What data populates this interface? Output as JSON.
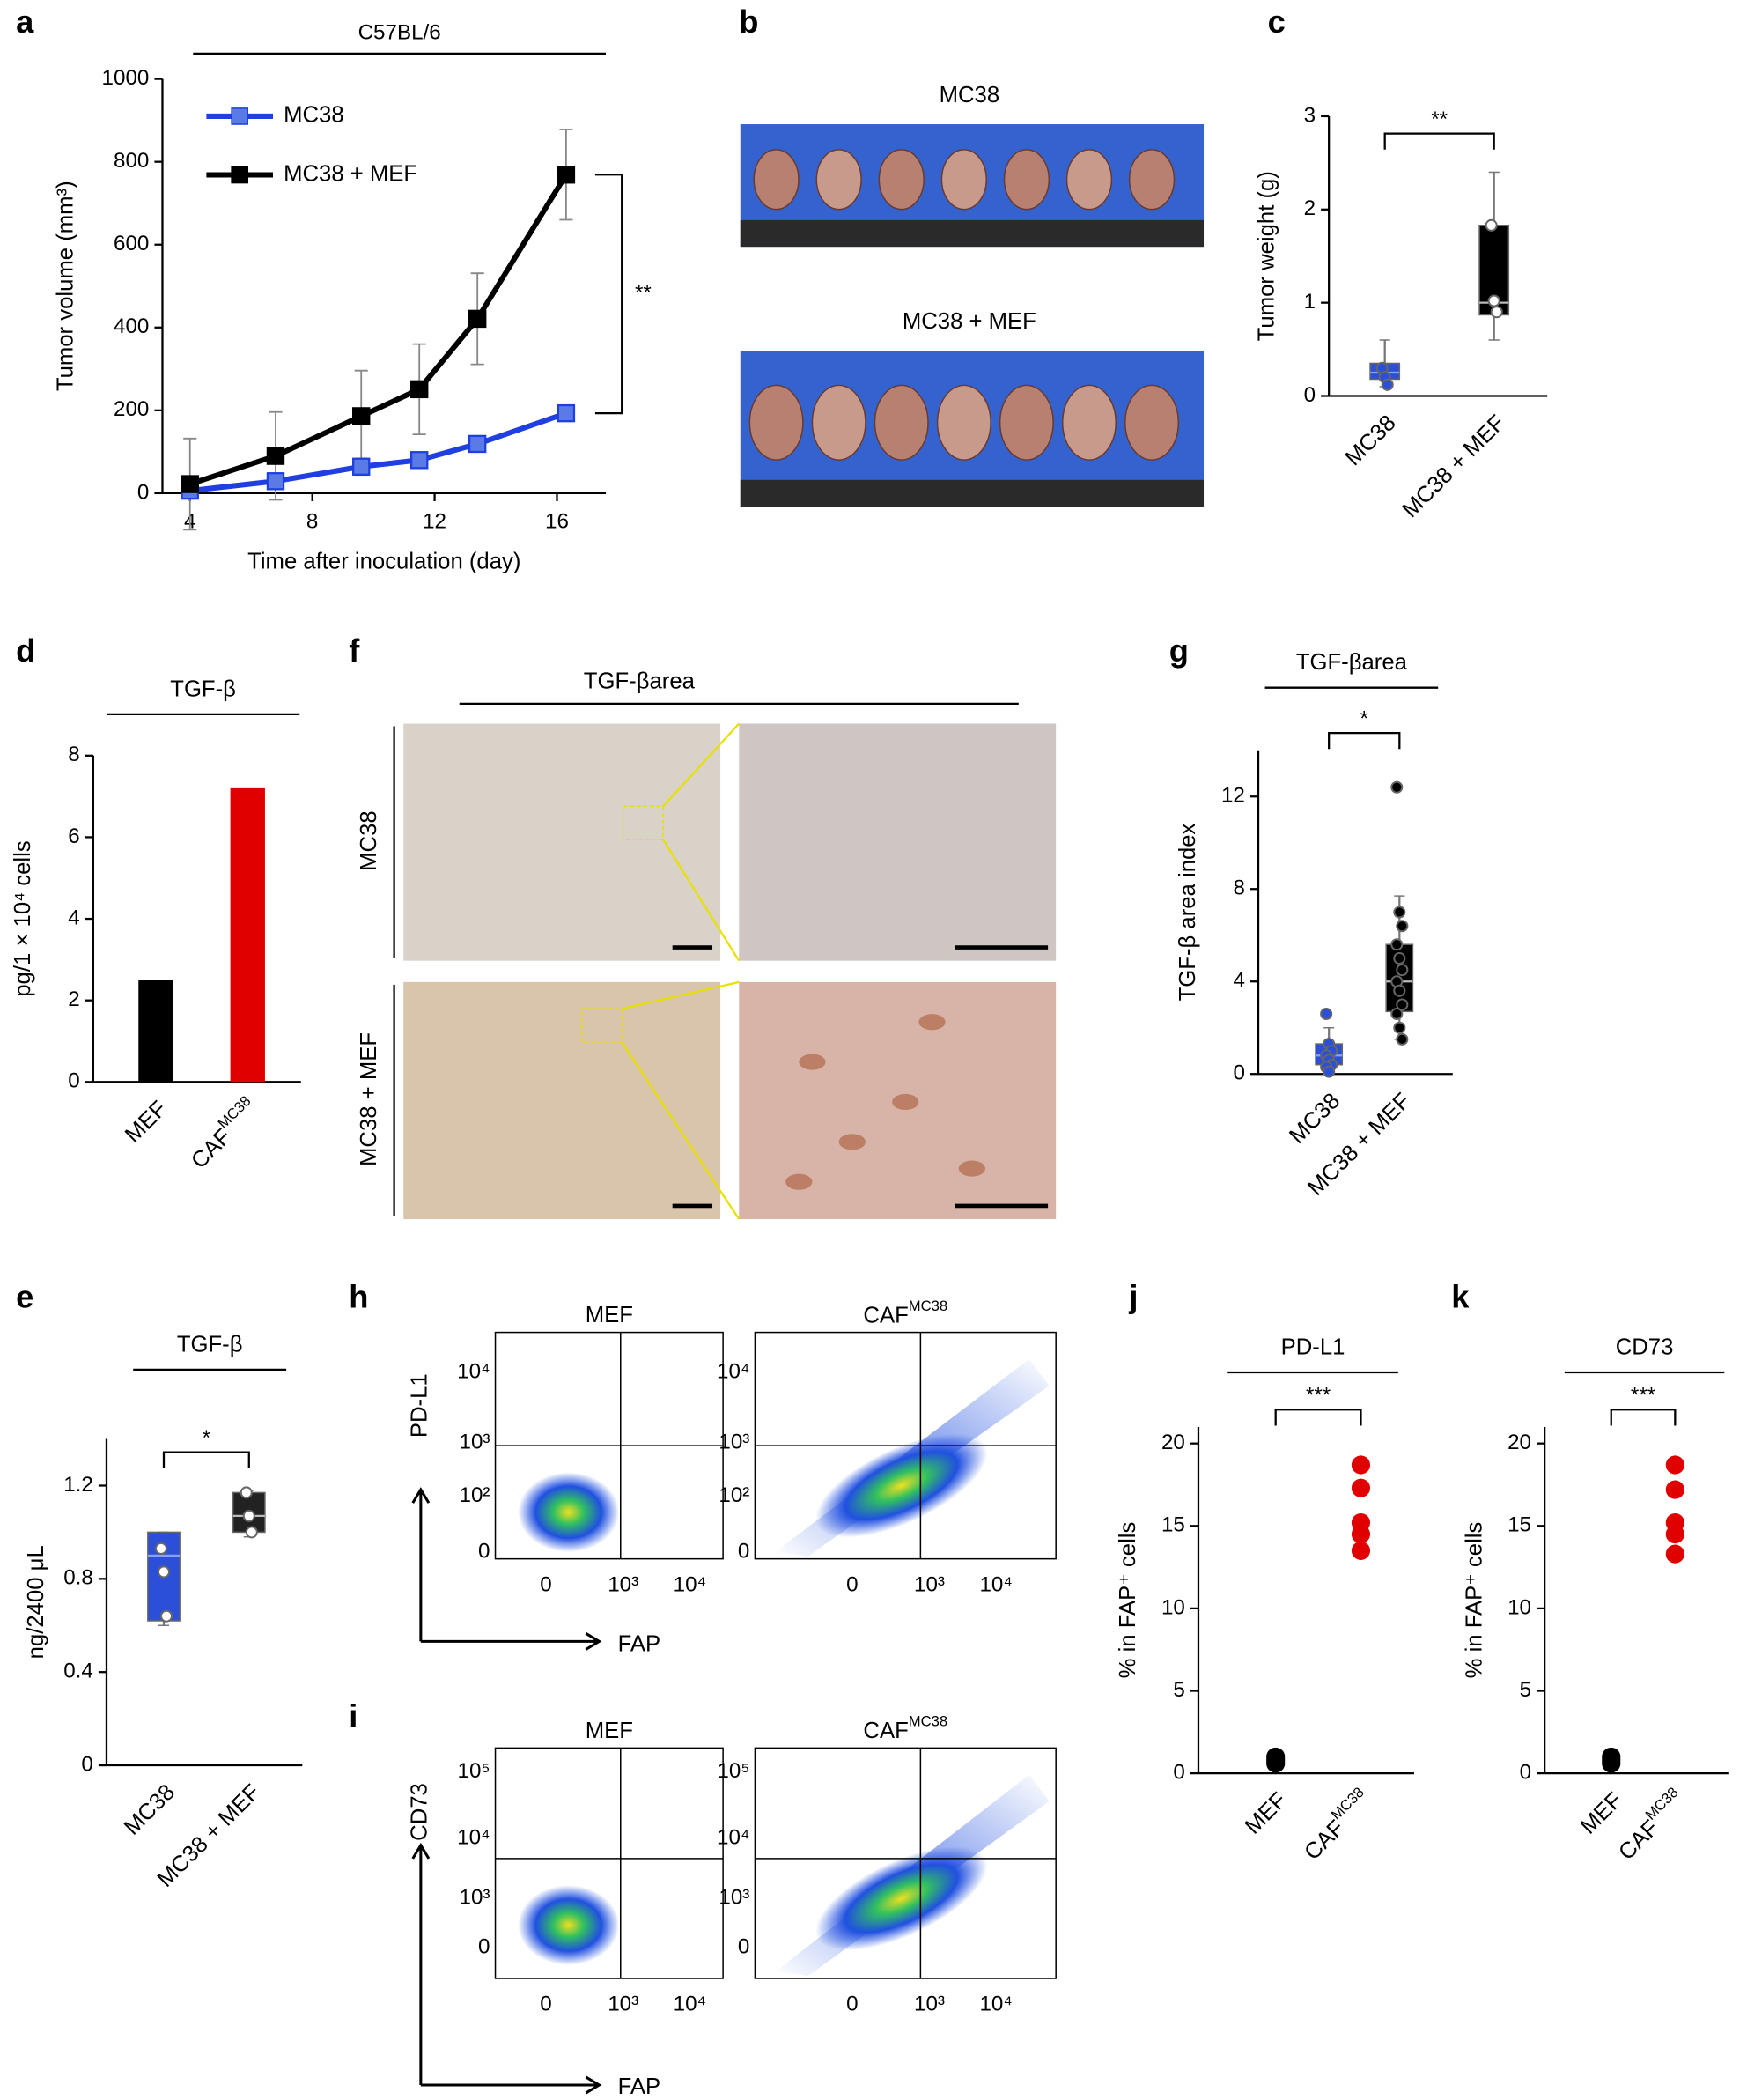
{
  "chart_data": [
    {
      "type": "line",
      "annotation": "C57BL/6",
      "x_label": "Time after inoculation (day)",
      "y_label": "Tumor volume (mm³)",
      "x": [
        4,
        6.8,
        9.6,
        11.5,
        13.4,
        16.3
      ],
      "xlim": [
        3.1,
        17.6
      ],
      "xticks": [
        4,
        8,
        12,
        16
      ],
      "ylim": [
        0,
        1000
      ],
      "yticks": [
        0,
        200,
        400,
        600,
        800,
        1000
      ],
      "series": [
        {
          "name": "MC38",
          "color": "#1f3fe0",
          "values": [
            6,
            29,
            64,
            80,
            119,
            193
          ],
          "errors": [
            6,
            8,
            20,
            18,
            14,
            18
          ]
        },
        {
          "name": "MC38 + MEF",
          "color": "#000000",
          "values": [
            22,
            90,
            186,
            251,
            421,
            769
          ],
          "errors": [
            110,
            106,
            110,
            109,
            110,
            109
          ]
        }
      ],
      "significance": "**",
      "legend": "upper left"
    },
    {
      "type": "box",
      "y_label": "Tumor weight (g)",
      "categories": [
        "MC38",
        "MC38 + MEF"
      ],
      "colors": [
        "#2b4fd8",
        "#000000"
      ],
      "point_colors": [
        "#2b4fd8",
        "#ffffff"
      ],
      "ylim": [
        0,
        3
      ],
      "yticks": [
        0,
        1,
        2,
        3
      ],
      "significance": "**",
      "stats": [
        {
          "min": 0.1,
          "q1": 0.18,
          "median": 0.25,
          "q3": 0.35,
          "max": 0.6,
          "points": [
            0.3,
            0.2,
            0.12
          ]
        },
        {
          "min": 0.6,
          "q1": 0.87,
          "median": 1.0,
          "q3": 1.83,
          "max": 2.4,
          "points": [
            1.83,
            1.02,
            0.9
          ]
        }
      ]
    },
    {
      "type": "bar",
      "title": "TGF-β",
      "y_label": "pg/1 × 10⁴ cells",
      "categories": [
        "MEF",
        {
          "text": "CAF",
          "sup": "MC38"
        }
      ],
      "values": [
        2.5,
        7.2
      ],
      "colors": [
        "#000000",
        "#e00000"
      ],
      "ylim": [
        0,
        8
      ],
      "yticks": [
        0,
        2,
        4,
        6,
        8
      ]
    },
    {
      "type": "box",
      "title": "TGF-β",
      "y_label": "ng/2400 μL",
      "categories": [
        "MC38",
        "MC38 + MEF"
      ],
      "colors": [
        "#2b4fd8",
        "#222222"
      ],
      "point_colors": [
        "#ffffff",
        "#ffffff"
      ],
      "ylim": [
        0,
        1.4
      ],
      "yticks": [
        0,
        0.4,
        0.8,
        1.2
      ],
      "significance": "*",
      "stats": [
        {
          "min": 0.6,
          "q1": 0.62,
          "median": 0.9,
          "q3": 1.0,
          "max": 1.0,
          "points": [
            0.93,
            0.83,
            0.64
          ]
        },
        {
          "min": 0.98,
          "q1": 1.0,
          "median": 1.07,
          "q3": 1.17,
          "max": 1.18,
          "points": [
            1.17,
            1.07,
            1.0
          ]
        }
      ]
    },
    {
      "type": "box",
      "title": "TGF-βarea",
      "y_label": "TGF-β area index",
      "categories": [
        "MC38",
        "MC38 + MEF"
      ],
      "colors": [
        "#2b4fd8",
        "#000000"
      ],
      "point_colors": [
        "#2b4fd8",
        "#000000"
      ],
      "ylim": [
        0,
        14
      ],
      "yticks": [
        0,
        4,
        8,
        12
      ],
      "significance": "*",
      "stats": [
        {
          "min": 0,
          "q1": 0.4,
          "median": 0.8,
          "q3": 1.3,
          "max": 2.0,
          "points": [
            2.6,
            1.3,
            1.0,
            0.8,
            0.6,
            0.4,
            0.3,
            0.1
          ]
        },
        {
          "min": 1.5,
          "q1": 2.7,
          "median": 4.0,
          "q3": 5.6,
          "max": 7.7,
          "points": [
            12.4,
            7.0,
            6.4,
            5.6,
            5.0,
            4.5,
            4.0,
            3.6,
            3.0,
            2.6,
            2.0,
            1.5
          ]
        }
      ]
    },
    {
      "type": "strip",
      "title": "PD-L1",
      "y_label": "% in FAP⁺ cells",
      "categories": [
        "MEF",
        {
          "text": "CAF",
          "sup": "MC38"
        }
      ],
      "colors": [
        "#000000",
        "#e00000"
      ],
      "ylim": [
        0,
        21
      ],
      "yticks": [
        0,
        5,
        10,
        15,
        20
      ],
      "significance": "***",
      "values": [
        [
          0.6,
          0.8,
          1.0
        ],
        [
          13.5,
          14.5,
          15.2,
          17.3,
          18.7
        ]
      ]
    },
    {
      "type": "strip",
      "title": "CD73",
      "y_label": "% in FAP⁺ cells",
      "categories": [
        "MEF",
        {
          "text": "CAF",
          "sup": "MC38"
        }
      ],
      "colors": [
        "#000000",
        "#e00000"
      ],
      "ylim": [
        0,
        21
      ],
      "yticks": [
        0,
        5,
        10,
        15,
        20
      ],
      "significance": "***",
      "values": [
        [
          0.6,
          0.8,
          1.0
        ],
        [
          13.3,
          14.5,
          15.2,
          17.2,
          18.7
        ]
      ]
    }
  ],
  "figure": {
    "panel_labels": [
      "a",
      "b",
      "c",
      "d",
      "e",
      "f",
      "g",
      "h",
      "i",
      "j",
      "k"
    ],
    "photos": {
      "rows": [
        "MC38",
        "MC38 + MEF"
      ]
    },
    "ihc": {
      "title": "TGF-βarea",
      "rows": [
        "MC38",
        "MC38 + MEF"
      ]
    },
    "flow": [
      {
        "y_label": "PD-L1",
        "x_label": "FAP",
        "titles": [
          "MEF",
          {
            "text": "CAF",
            "sup": "MC38"
          }
        ],
        "yticks": [
          "10⁴",
          "10³",
          "10²",
          "0"
        ],
        "xticks": [
          "0",
          "10³",
          "10⁴"
        ]
      },
      {
        "y_label": "CD73",
        "x_label": "FAP",
        "titles": [
          "MEF",
          {
            "text": "CAF",
            "sup": "MC38"
          }
        ],
        "yticks": [
          "10⁵",
          "10⁴",
          "10³",
          "0"
        ],
        "xticks": [
          "0",
          "10³",
          "10⁴"
        ]
      }
    ]
  }
}
